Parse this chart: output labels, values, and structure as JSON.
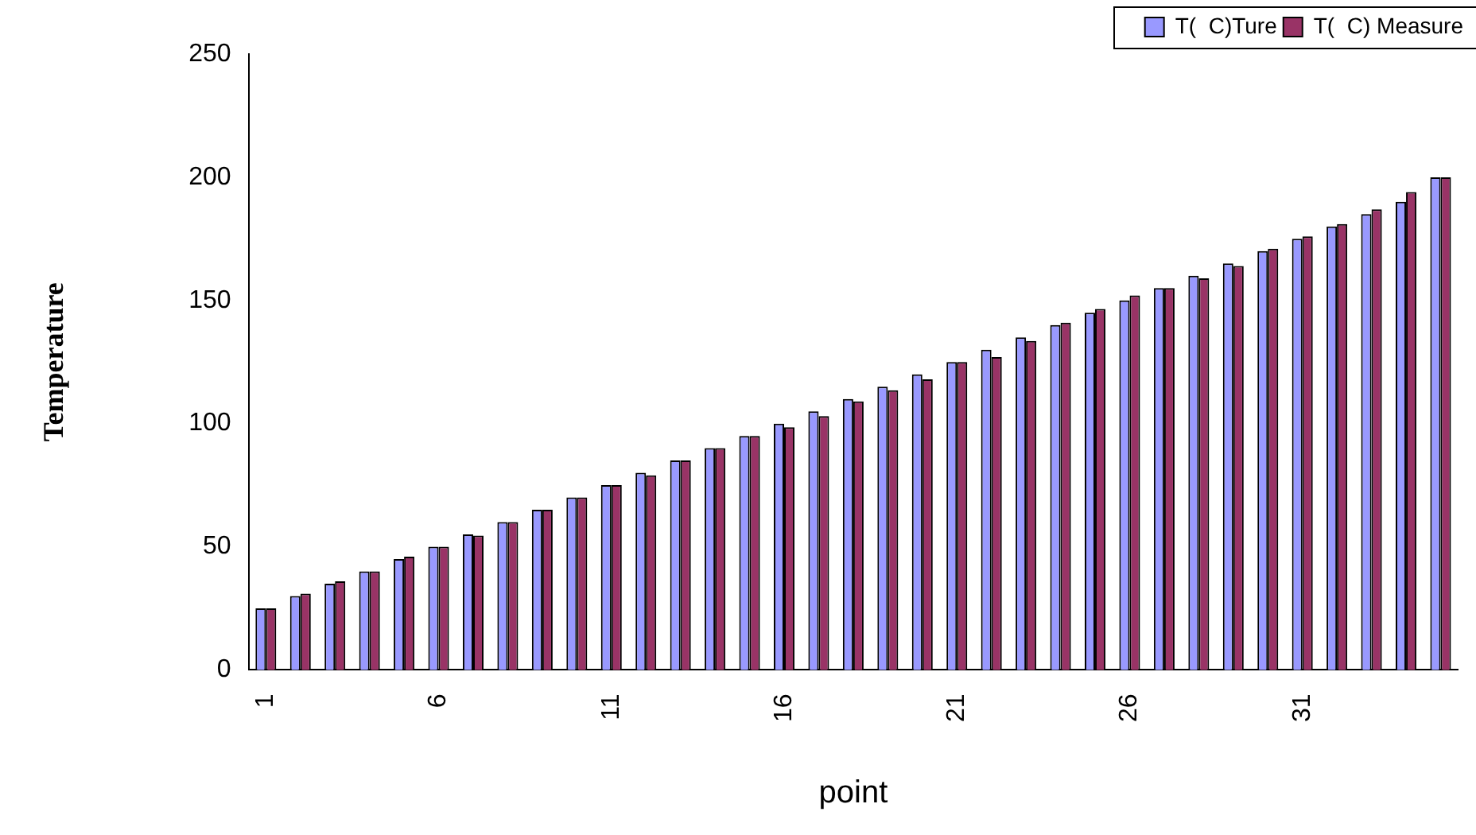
{
  "chart_data": {
    "type": "bar",
    "xlabel": "point",
    "ylabel": "Temperature",
    "categories": [
      "1",
      null,
      null,
      null,
      null,
      "6",
      null,
      null,
      null,
      null,
      "11",
      null,
      null,
      null,
      null,
      "16",
      null,
      null,
      null,
      null,
      "21",
      null,
      null,
      null,
      null,
      "26",
      null,
      null,
      null,
      null,
      "31",
      null,
      null,
      null,
      null
    ],
    "series": [
      {
        "name": "T(  C)Ture",
        "color": "#9999ff",
        "values": [
          25,
          30,
          35,
          40,
          45,
          50,
          55,
          60,
          65,
          70,
          75,
          80,
          85,
          90,
          95,
          100,
          105,
          110,
          115,
          120,
          125,
          130,
          135,
          140,
          145,
          150,
          155,
          160,
          165,
          170,
          175,
          180,
          185,
          190,
          200
        ]
      },
      {
        "name": "T(  C) Measure",
        "color": "#993366",
        "values": [
          25,
          31,
          36,
          40,
          46,
          50,
          54.5,
          60,
          65,
          70,
          75,
          79,
          85,
          90,
          95,
          98.5,
          103,
          109,
          113.5,
          118,
          125,
          127,
          133.5,
          141,
          146.5,
          152,
          155,
          159,
          164,
          171,
          176,
          181,
          187,
          194,
          200
        ]
      }
    ],
    "ylim": [
      0,
      250
    ],
    "yticks": [
      0,
      50,
      100,
      150,
      200,
      250
    ],
    "grid": false,
    "legend": "top right"
  }
}
